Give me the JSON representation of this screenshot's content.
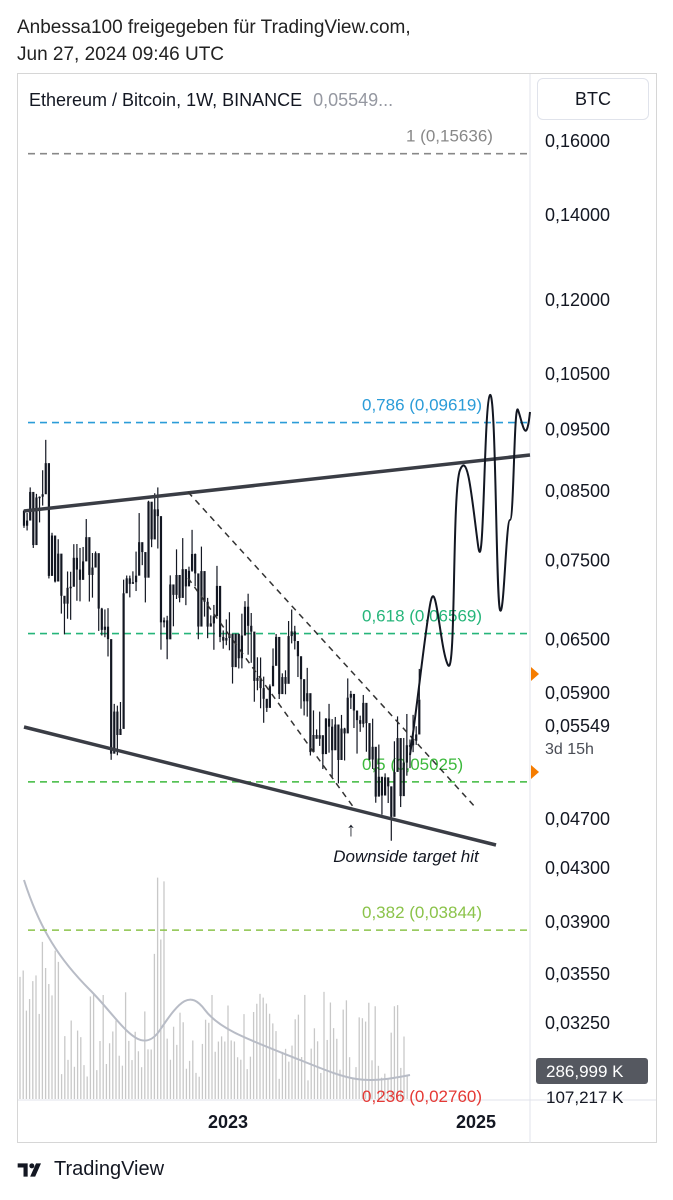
{
  "header": {
    "line1": "Anbessa100 freigegeben für TradingView.com,",
    "line2": "Jun 27, 2024 09:46 UTC"
  },
  "symbol_bar": {
    "label": "Ethereum / Bitcoin, 1W, BINANCE",
    "price": "0,05549..."
  },
  "scale_button": "BTC",
  "footer": {
    "brand": "TradingView"
  },
  "colors": {
    "fib_1": "#888888",
    "fib_786": "#2b9cd8",
    "fib_618": "#26b57a",
    "fib_5": "#3cb93c",
    "fib_382": "#8bc34a",
    "fib_236": "#e53935",
    "last_price_marker": "#f57c00"
  },
  "chart_data": {
    "type": "candlestick",
    "symbol": "Ethereum / Bitcoin",
    "interval": "1W",
    "exchange": "BINANCE",
    "last_price": "0,05549",
    "countdown": "3d 15h",
    "volume_label": "286,999 K",
    "volume_label_2": "107,217 K",
    "y_tick_labels": [
      "0,16000",
      "0,14000",
      "0,12000",
      "0,10500",
      "0,09500",
      "0,08500",
      "0,07500",
      "0,06500",
      "0,05900",
      "0,04700",
      "0,04300",
      "0,03900",
      "0,03550",
      "0,03250"
    ],
    "y_ticks": [
      0.16,
      0.14,
      0.12,
      0.105,
      0.095,
      0.085,
      0.075,
      0.065,
      0.059,
      0.047,
      0.043,
      0.039,
      0.0355,
      0.0325
    ],
    "y_scale": "log",
    "x_tick_labels": [
      "2023",
      "2025"
    ],
    "fib_levels": [
      {
        "label": "1 (0,15636)",
        "value": 0.15636
      },
      {
        "label": "0,786 (0,09619)",
        "value": 0.09619
      },
      {
        "label": "0,618 (0,06569)",
        "value": 0.06569
      },
      {
        "label": "0,5 (0,05025)",
        "value": 0.05025
      },
      {
        "label": "0,382 (0,03844)",
        "value": 0.03844
      },
      {
        "label": "0,236 (0,02760)",
        "value": 0.0276
      }
    ],
    "annotation": "Downside target hit",
    "price_series": [
      {
        "date": "2021-11",
        "value": 0.082
      },
      {
        "date": "2021-12",
        "value": 0.085
      },
      {
        "date": "2022-01",
        "value": 0.075
      },
      {
        "date": "2022-02",
        "value": 0.07
      },
      {
        "date": "2022-03",
        "value": 0.072
      },
      {
        "date": "2022-04",
        "value": 0.074
      },
      {
        "date": "2022-05",
        "value": 0.069
      },
      {
        "date": "2022-06",
        "value": 0.056
      },
      {
        "date": "2022-07",
        "value": 0.072
      },
      {
        "date": "2022-08",
        "value": 0.077
      },
      {
        "date": "2022-09",
        "value": 0.08
      },
      {
        "date": "2022-10",
        "value": 0.068
      },
      {
        "date": "2022-11",
        "value": 0.072
      },
      {
        "date": "2022-12",
        "value": 0.073
      },
      {
        "date": "2023-01",
        "value": 0.07
      },
      {
        "date": "2023-02",
        "value": 0.069
      },
      {
        "date": "2023-03",
        "value": 0.065
      },
      {
        "date": "2023-04",
        "value": 0.066
      },
      {
        "date": "2023-05",
        "value": 0.064
      },
      {
        "date": "2023-06",
        "value": 0.061
      },
      {
        "date": "2023-07",
        "value": 0.062
      },
      {
        "date": "2023-08",
        "value": 0.063
      },
      {
        "date": "2023-09",
        "value": 0.061
      },
      {
        "date": "2023-10",
        "value": 0.055
      },
      {
        "date": "2023-11",
        "value": 0.056
      },
      {
        "date": "2023-12",
        "value": 0.053
      },
      {
        "date": "2024-01",
        "value": 0.058
      },
      {
        "date": "2024-02",
        "value": 0.055
      },
      {
        "date": "2024-03",
        "value": 0.052
      },
      {
        "date": "2024-04",
        "value": 0.05
      },
      {
        "date": "2024-05",
        "value": 0.052
      },
      {
        "date": "2024-06",
        "value": 0.05549
      }
    ],
    "grid": false
  }
}
